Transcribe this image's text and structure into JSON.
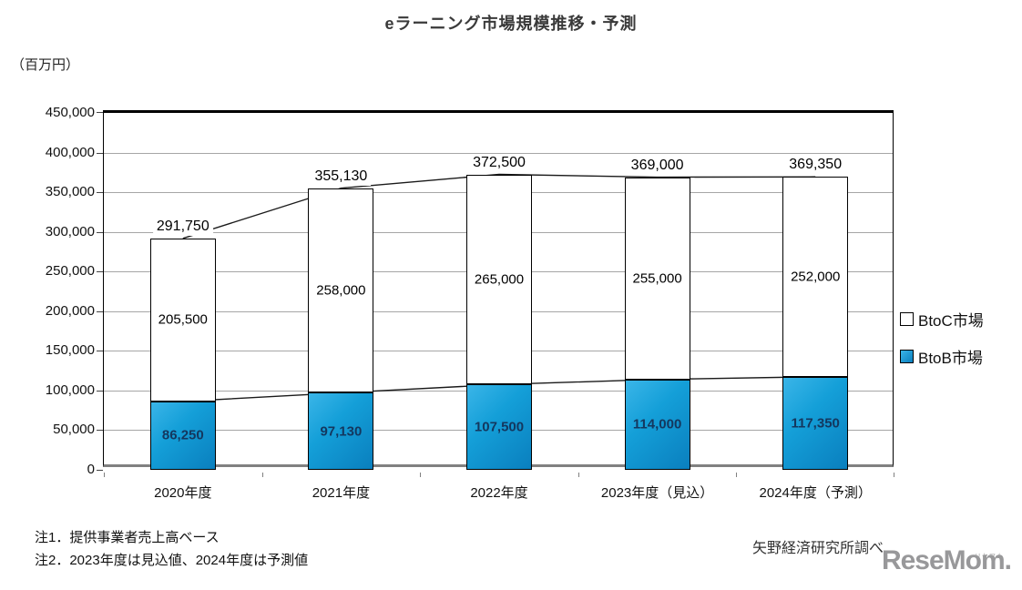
{
  "page": {
    "title": "eラーニング市場規模推移・予測",
    "unit_label": "（百万円）",
    "notes": [
      "注1．提供事業者売上高ベース",
      "注2．2023年度は見込値、2024年度は予測値"
    ],
    "source": "矢野経済研究所調べ",
    "logo": {
      "text": "ReseMom.",
      "ruby": "リセマム"
    }
  },
  "legend": [
    {
      "label": "BtoC市場",
      "swatch_color": "#ffffff"
    },
    {
      "label": "BtoB市場",
      "swatch_color": "#129bd6"
    }
  ],
  "chart_data": {
    "type": "bar",
    "stacked": true,
    "title": "eラーニング市場規模推移・予測",
    "unit": "百万円",
    "categories": [
      "2020年度",
      "2021年度",
      "2022年度",
      "2023年度（見込）",
      "2024年度（予測）"
    ],
    "series": [
      {
        "name": "BtoB市場",
        "color": "#129bd6",
        "values": [
          86250,
          97130,
          107500,
          114000,
          117350
        ]
      },
      {
        "name": "BtoC市場",
        "color": "#ffffff",
        "values": [
          205500,
          258000,
          265000,
          255000,
          252000
        ]
      }
    ],
    "totals": [
      291750,
      355130,
      372500,
      369000,
      369350
    ],
    "xlabel": "",
    "ylabel": "（百万円）",
    "ylim": [
      0,
      450000
    ],
    "ytick_step": 50000,
    "grid": true,
    "legend_position": "right",
    "line_overlays": [
      "totals",
      "BtoB市場"
    ],
    "colors": {
      "grid": "#a6a6a6",
      "line": "#1a1a1a",
      "btob_label_text": "#14375e"
    }
  }
}
